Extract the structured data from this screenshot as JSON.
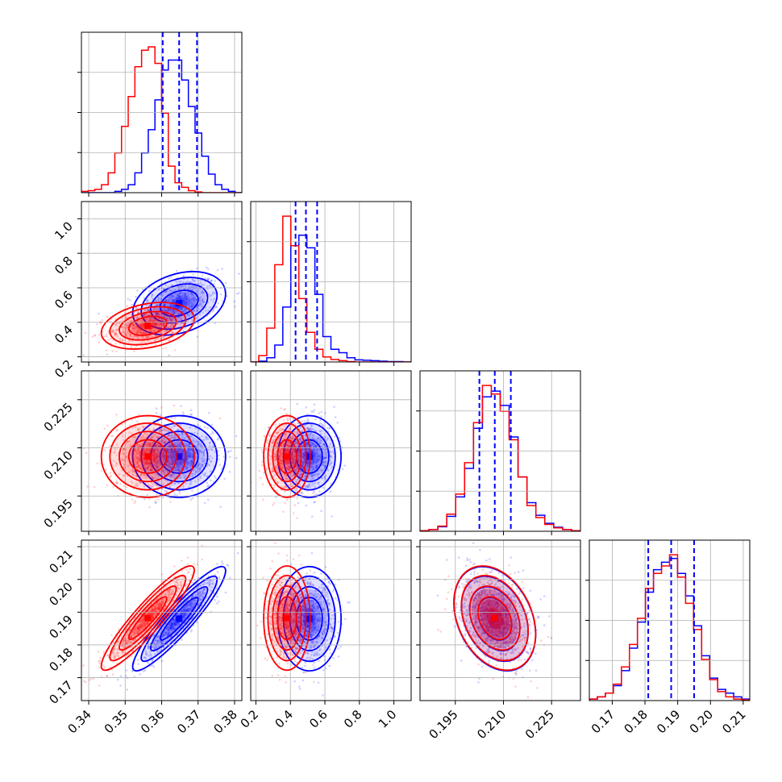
{
  "colors": {
    "series_a": "#0000ff",
    "series_b": "#ff0000",
    "grid": "#b0b0b0",
    "axes": "#000000"
  },
  "chart_data": {
    "type": "corner",
    "parameters": [
      {
        "range": [
          0.338,
          0.382
        ],
        "ticks": [
          "0.34",
          "0.35",
          "0.36",
          "0.37",
          "0.38"
        ],
        "tick_values": [
          0.34,
          0.35,
          0.36,
          0.37,
          0.38
        ]
      },
      {
        "range": [
          0.17,
          1.1
        ],
        "ticks": [
          "0.2",
          "0.4",
          "0.6",
          "0.8",
          "1.0"
        ],
        "tick_values": [
          0.2,
          0.4,
          0.6,
          0.8,
          1.0
        ]
      },
      {
        "range": [
          0.184,
          0.234
        ],
        "ticks": [
          "0.195",
          "0.210",
          "0.225"
        ],
        "tick_values": [
          0.195,
          0.21,
          0.225
        ]
      },
      {
        "range": [
          0.163,
          0.212
        ],
        "ticks": [
          "0.17",
          "0.18",
          "0.19",
          "0.20",
          "0.21"
        ],
        "tick_values": [
          0.17,
          0.18,
          0.19,
          0.2,
          0.21
        ]
      }
    ],
    "grid": true,
    "series": [
      {
        "color": "#0000ff",
        "quantiles": [
          [
            0.3603,
            0.3648,
            0.3697
          ],
          [
            0.43,
            0.49,
            0.555
          ],
          [
            0.2025,
            0.2073,
            0.2123
          ],
          [
            0.181,
            0.188,
            0.195
          ]
        ],
        "centers": [
          0.3648,
          0.51,
          0.2073,
          0.188
        ],
        "sigmas": [
          0.0052,
          0.075,
          0.0052,
          0.0065
        ],
        "correlations": {
          "0-1": 0.3,
          "0-2": 0.0,
          "0-3": 0.92,
          "1-2": 0.0,
          "1-3": 0.0,
          "2-3": -0.3
        },
        "histograms": [
          {
            "edges_from": 0.338,
            "edges_to": 0.382,
            "counts": [
              0,
              0,
              0,
              0,
              0,
              2,
              5,
              12,
              30,
              60,
              95,
              140,
              185,
              200,
              200,
              170,
              130,
              90,
              55,
              28,
              12,
              5,
              2,
              0
            ]
          },
          {
            "edges_from": 0.17,
            "edges_to": 1.1,
            "counts": [
              0,
              2,
              10,
              40,
              130,
              275,
              300,
              270,
              160,
              60,
              30,
              22,
              10,
              5,
              4,
              3,
              2,
              1,
              1,
              0
            ]
          },
          {
            "edges_from": 0.184,
            "edges_to": 0.234,
            "counts": [
              1,
              3,
              8,
              26,
              60,
              110,
              180,
              235,
              245,
              220,
              165,
              95,
              50,
              28,
              14,
              7,
              3,
              1
            ]
          },
          {
            "edges_from": 0.163,
            "edges_to": 0.212,
            "counts": [
              2,
              5,
              10,
              20,
              40,
              70,
              105,
              145,
              175,
              185,
              190,
              170,
              140,
              100,
              60,
              30,
              15,
              10,
              5,
              2
            ]
          }
        ]
      },
      {
        "color": "#ff0000",
        "quantiles": [],
        "centers": [
          0.3562,
          0.38,
          0.2073,
          0.1882
        ],
        "sigmas": [
          0.0052,
          0.055,
          0.0052,
          0.0065
        ],
        "correlations": {
          "0-1": 0.3,
          "0-2": 0.0,
          "0-3": 0.92,
          "1-2": 0.0,
          "1-3": 0.0,
          "2-3": -0.3
        },
        "histograms": [
          {
            "edges_from": 0.338,
            "edges_to": 0.382,
            "counts": [
              2,
              3,
              5,
              12,
              30,
              60,
              100,
              145,
              190,
              215,
              220,
              195,
              120,
              40,
              15,
              8,
              3,
              1,
              0,
              0,
              0,
              0,
              0,
              0
            ]
          },
          {
            "edges_from": 0.17,
            "edges_to": 1.1,
            "counts": [
              0,
              15,
              80,
              230,
              345,
              275,
              150,
              70,
              30,
              12,
              6,
              3,
              1,
              0,
              0,
              0,
              0,
              0,
              0,
              0
            ]
          },
          {
            "edges_from": 0.184,
            "edges_to": 0.234,
            "counts": [
              1,
              3,
              9,
              30,
              65,
              120,
              190,
              255,
              240,
              210,
              160,
              95,
              45,
              24,
              12,
              6,
              3,
              1
            ]
          },
          {
            "edges_from": 0.163,
            "edges_to": 0.212,
            "counts": [
              2,
              5,
              10,
              22,
              45,
              75,
              110,
              150,
              170,
              180,
              195,
              165,
              130,
              95,
              55,
              28,
              12,
              5,
              2,
              1
            ]
          }
        ]
      }
    ]
  }
}
